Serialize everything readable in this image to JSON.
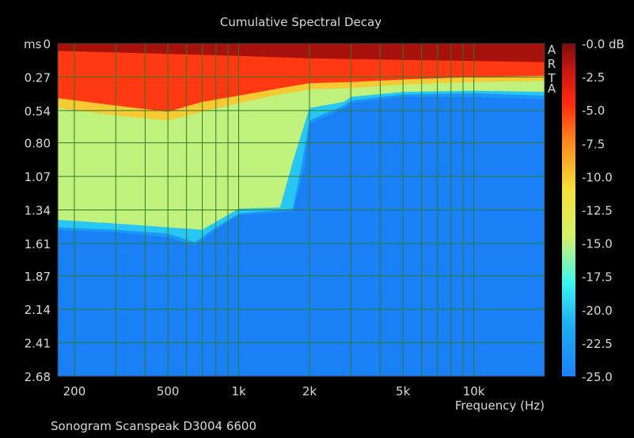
{
  "chart_data": {
    "type": "heatmap",
    "title": "Cumulative Spectral Decay",
    "xlabel": "Frequency (Hz)",
    "ylabel": "ms",
    "x_scale": "log",
    "xlim": [
      170,
      20000
    ],
    "ylim": [
      0,
      2.68
    ],
    "x_ticks": [
      {
        "value": 200,
        "label": "200"
      },
      {
        "value": 500,
        "label": "500"
      },
      {
        "value": 1000,
        "label": "1k"
      },
      {
        "value": 2000,
        "label": "2k"
      },
      {
        "value": 5000,
        "label": "5k"
      },
      {
        "value": 10000,
        "label": "10k"
      }
    ],
    "y_ticks": [
      {
        "value": 0,
        "label": "0"
      },
      {
        "value": 0.27,
        "label": "0.27"
      },
      {
        "value": 0.54,
        "label": "0.54"
      },
      {
        "value": 0.8,
        "label": "0.80"
      },
      {
        "value": 1.07,
        "label": "1.07"
      },
      {
        "value": 1.34,
        "label": "1.34"
      },
      {
        "value": 1.61,
        "label": "1.61"
      },
      {
        "value": 1.87,
        "label": "1.87"
      },
      {
        "value": 2.14,
        "label": "2.14"
      },
      {
        "value": 2.41,
        "label": "2.41"
      },
      {
        "value": 2.68,
        "label": "2.68"
      }
    ],
    "colorbar": {
      "min": -25.0,
      "max": 0.0,
      "unit": "dB",
      "labels": [
        "-0.0 dB",
        "-2.5",
        "-5.0",
        "-7.5",
        "-10.0",
        "-12.5",
        "-15.0",
        "-17.5",
        "-20.0",
        "-22.5",
        "-25.0"
      ]
    },
    "grid": true,
    "decay_contours": [
      {
        "level_db": -5,
        "points": [
          [
            170,
            0.44
          ],
          [
            300,
            0.5
          ],
          [
            500,
            0.55
          ],
          [
            700,
            0.47
          ],
          [
            1000,
            0.42
          ],
          [
            1500,
            0.36
          ],
          [
            2000,
            0.32
          ],
          [
            3000,
            0.31
          ],
          [
            5000,
            0.29
          ],
          [
            10000,
            0.27
          ],
          [
            20000,
            0.26
          ]
        ]
      },
      {
        "level_db": -10,
        "points": [
          [
            170,
            0.52
          ],
          [
            300,
            0.58
          ],
          [
            500,
            0.62
          ],
          [
            700,
            0.55
          ],
          [
            1000,
            0.48
          ],
          [
            1500,
            0.41
          ],
          [
            2000,
            0.37
          ],
          [
            3000,
            0.36
          ],
          [
            5000,
            0.33
          ],
          [
            10000,
            0.31
          ],
          [
            20000,
            0.3
          ]
        ]
      },
      {
        "level_db": -15,
        "points": [
          [
            170,
            1.42
          ],
          [
            300,
            1.45
          ],
          [
            500,
            1.48
          ],
          [
            700,
            1.5
          ],
          [
            1000,
            1.33
          ],
          [
            1500,
            1.32
          ],
          [
            1700,
            0.95
          ],
          [
            2000,
            0.52
          ],
          [
            2800,
            0.47
          ],
          [
            3000,
            0.43
          ],
          [
            5000,
            0.39
          ],
          [
            10000,
            0.38
          ],
          [
            20000,
            0.39
          ]
        ]
      },
      {
        "level_db": -20,
        "points": [
          [
            170,
            1.48
          ],
          [
            300,
            1.5
          ],
          [
            500,
            1.53
          ],
          [
            650,
            1.6
          ],
          [
            800,
            1.48
          ],
          [
            1000,
            1.37
          ],
          [
            1500,
            1.34
          ],
          [
            1700,
            1.33
          ],
          [
            1850,
            0.98
          ],
          [
            2000,
            0.62
          ],
          [
            2800,
            0.5
          ],
          [
            3000,
            0.46
          ],
          [
            5000,
            0.41
          ],
          [
            10000,
            0.4
          ],
          [
            20000,
            0.42
          ]
        ]
      },
      {
        "level_db": -23,
        "points": [
          [
            170,
            1.5
          ],
          [
            300,
            1.52
          ],
          [
            500,
            1.56
          ],
          [
            650,
            1.63
          ],
          [
            800,
            1.5
          ],
          [
            1000,
            1.38
          ],
          [
            1500,
            1.36
          ],
          [
            1700,
            1.35
          ],
          [
            1900,
            1.0
          ],
          [
            2000,
            0.65
          ],
          [
            2800,
            0.52
          ],
          [
            3000,
            0.48
          ],
          [
            5000,
            0.43
          ],
          [
            10000,
            0.43
          ],
          [
            20000,
            0.45
          ]
        ]
      }
    ],
    "caption": "Sonogram Scanspeak D3004 6600",
    "watermark": "ARTA"
  }
}
